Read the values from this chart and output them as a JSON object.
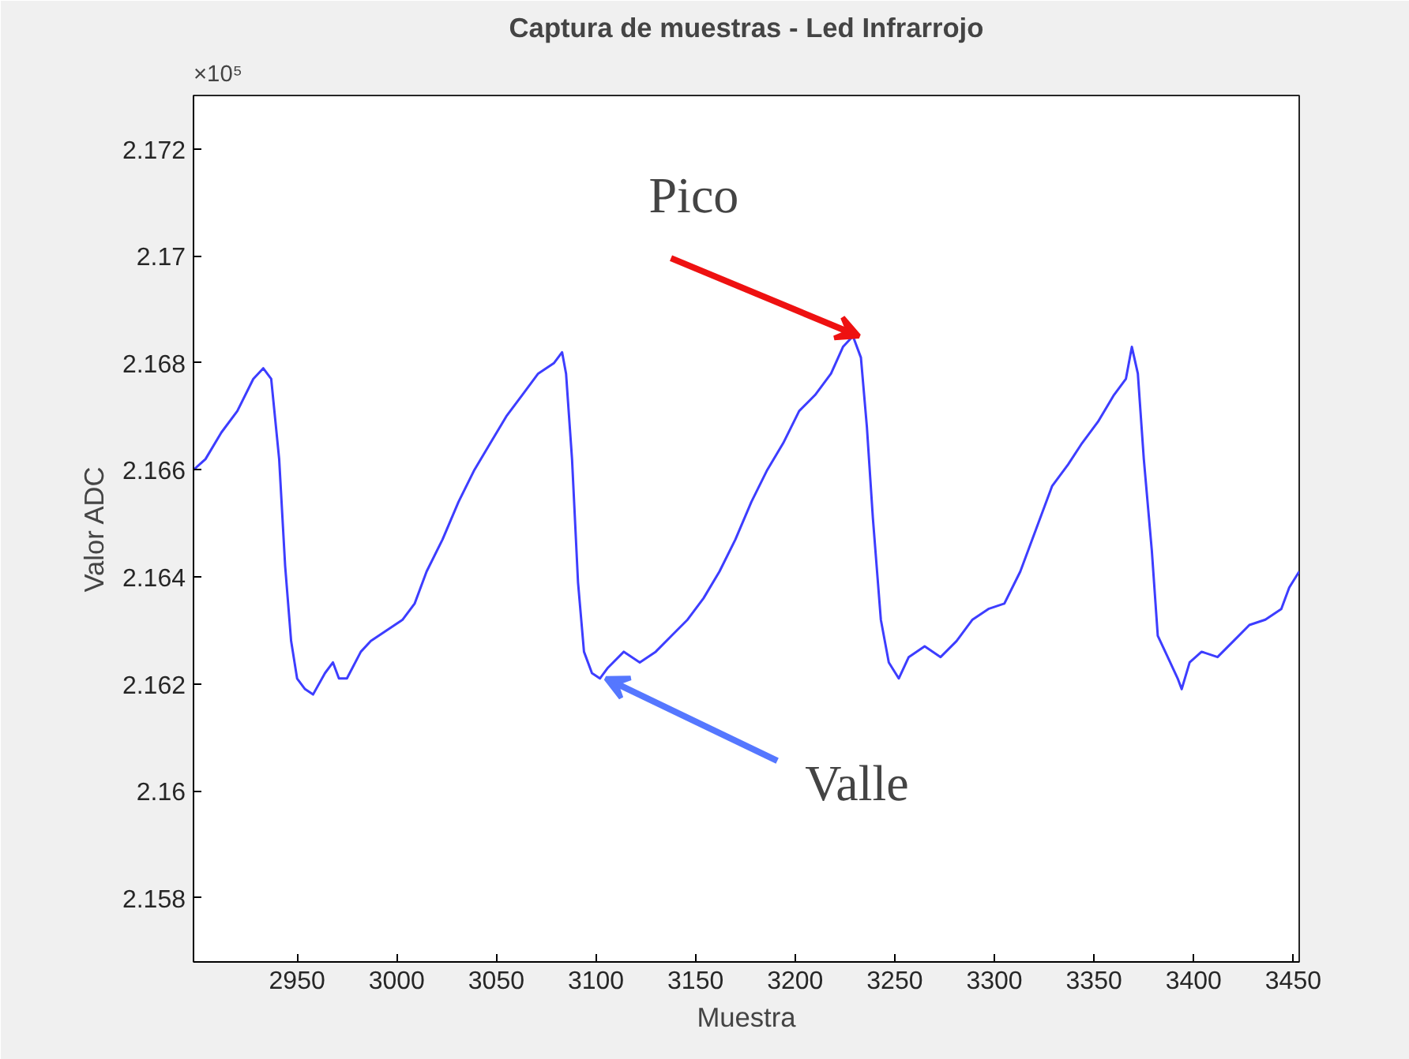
{
  "chart_data": {
    "type": "line",
    "title": "Captura de muestras - Led Infrarrojo",
    "xlabel": "Muestra",
    "ylabel": "Valor ADC",
    "x": [
      2898,
      2904,
      2912,
      2920,
      2928,
      2933,
      2937,
      2941,
      2944,
      2947,
      2950,
      2954,
      2958,
      2964,
      2968,
      2971,
      2975,
      2982,
      2987,
      2995,
      3003,
      3009,
      3015,
      3023,
      3031,
      3039,
      3047,
      3055,
      3063,
      3071,
      3079,
      3083,
      3085,
      3088,
      3091,
      3094,
      3098,
      3102,
      3106,
      3114,
      3122,
      3130,
      3138,
      3146,
      3154,
      3162,
      3170,
      3178,
      3186,
      3194,
      3202,
      3210,
      3218,
      3224,
      3229,
      3233,
      3236,
      3239,
      3243,
      3247,
      3252,
      3257,
      3265,
      3273,
      3281,
      3289,
      3297,
      3305,
      3313,
      3321,
      3329,
      3337,
      3344,
      3352,
      3360,
      3366,
      3369,
      3372,
      3375,
      3379,
      3382,
      3387,
      3392,
      3394,
      3398,
      3404,
      3412,
      3420,
      3428,
      3436,
      3444,
      3448,
      3453
    ],
    "series": [
      {
        "color": "#3d3dff",
        "values": [
          2.166,
          2.1662,
          2.1667,
          2.1671,
          2.1677,
          2.1679,
          2.1677,
          2.1662,
          2.1642,
          2.1628,
          2.1621,
          2.1619,
          2.1618,
          2.1622,
          2.1624,
          2.1621,
          2.1621,
          2.1626,
          2.1628,
          2.163,
          2.1632,
          2.1635,
          2.1641,
          2.1647,
          2.1654,
          2.166,
          2.1665,
          2.167,
          2.1674,
          2.1678,
          2.168,
          2.1682,
          2.1678,
          2.1662,
          2.1639,
          2.1626,
          2.1622,
          2.1621,
          2.1623,
          2.1626,
          2.1624,
          2.1626,
          2.1629,
          2.1632,
          2.1636,
          2.1641,
          2.1647,
          2.1654,
          2.166,
          2.1665,
          2.1671,
          2.1674,
          2.1678,
          2.1683,
          2.1685,
          2.1681,
          2.1668,
          2.1651,
          2.1632,
          2.1624,
          2.1621,
          2.1625,
          2.1627,
          2.1625,
          2.1628,
          2.1632,
          2.1634,
          2.1635,
          2.1641,
          2.1649,
          2.1657,
          2.1661,
          2.1665,
          2.1669,
          2.1674,
          2.1677,
          2.1683,
          2.1678,
          2.1662,
          2.1645,
          2.1629,
          2.1625,
          2.1621,
          2.1619,
          2.1624,
          2.1626,
          2.1625,
          2.1628,
          2.1631,
          2.1632,
          2.1634,
          2.1638,
          2.1641
        ]
      }
    ],
    "xlim": [
      2898,
      3453
    ],
    "xticks": [
      2950,
      3000,
      3050,
      3100,
      3150,
      3200,
      3250,
      3300,
      3350,
      3400,
      3450
    ],
    "ylim": [
      2.1568,
      2.173
    ],
    "yticks": [
      2.158,
      2.16,
      2.162,
      2.164,
      2.166,
      2.168,
      2.17,
      2.172
    ],
    "grid": false,
    "marker": "none",
    "line_style": "solid",
    "annotations": [
      "×10⁵",
      {
        "text": "Pico",
        "x": 3232,
        "y": 2.1685
      },
      {
        "text": "Valle",
        "x": 3105,
        "y": 2.1621
      }
    ]
  }
}
